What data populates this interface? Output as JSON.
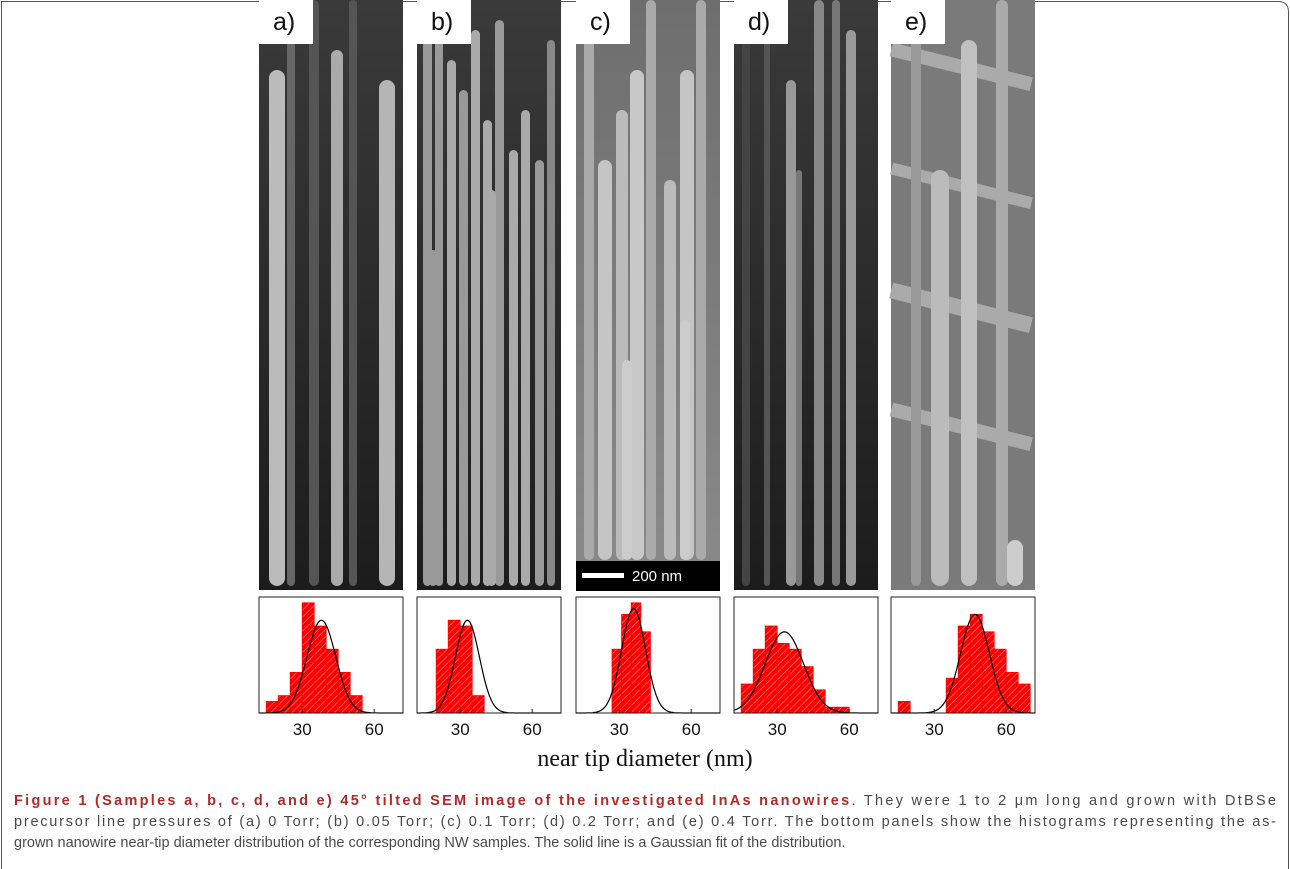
{
  "panels": [
    {
      "label": "a)"
    },
    {
      "label": "b)"
    },
    {
      "label": "c)"
    },
    {
      "label": "d)"
    },
    {
      "label": "e)"
    }
  ],
  "scale_bar": "200 nm",
  "x_label": "near tip diameter (nm)",
  "chart_data": [
    {
      "type": "histogram",
      "bins": [
        15,
        20,
        25,
        30,
        35,
        40,
        45,
        50,
        55
      ],
      "values": [
        2,
        3,
        7,
        19,
        15,
        11,
        7,
        3
      ],
      "color": "#ff0000",
      "xlim": [
        12,
        72
      ],
      "xticks": [
        30,
        60
      ],
      "ylim": [
        0,
        20
      ],
      "fit": {
        "mean": 38,
        "sd": 6,
        "peak": 16
      }
    },
    {
      "type": "histogram",
      "bins": [
        20,
        25,
        30,
        35,
        40
      ],
      "values": [
        11,
        16,
        15,
        3
      ],
      "color": "#ff0000",
      "xlim": [
        12,
        72
      ],
      "xticks": [
        30,
        60
      ],
      "ylim": [
        0,
        20
      ],
      "fit": {
        "mean": 33,
        "sd": 5,
        "peak": 16
      }
    },
    {
      "type": "histogram",
      "bins": [
        27,
        31,
        35,
        39,
        43
      ],
      "values": [
        11,
        17,
        19,
        14
      ],
      "color": "#ff0000",
      "xlim": [
        12,
        72
      ],
      "xticks": [
        30,
        60
      ],
      "ylim": [
        0,
        20
      ],
      "fit": {
        "mean": 36,
        "sd": 5,
        "peak": 18
      }
    },
    {
      "type": "histogram",
      "bins": [
        15,
        20,
        25,
        30,
        35,
        40,
        45,
        50,
        55,
        60
      ],
      "values": [
        5,
        11,
        15,
        12,
        11,
        8,
        4,
        1,
        1
      ],
      "color": "#ff0000",
      "xlim": [
        12,
        72
      ],
      "xticks": [
        30,
        60
      ],
      "ylim": [
        0,
        20
      ],
      "fit": {
        "mean": 33,
        "sd": 8,
        "peak": 14
      }
    },
    {
      "type": "histogram",
      "bins": [
        15,
        20,
        25,
        30,
        35,
        40,
        45,
        50,
        55,
        60,
        65,
        70
      ],
      "values": [
        2,
        0,
        0,
        0,
        6,
        15,
        17,
        14,
        11,
        7,
        5
      ],
      "color": "#ff0000",
      "xlim": [
        12,
        72
      ],
      "xticks": [
        30,
        60
      ],
      "ylim": [
        0,
        20
      ],
      "fit": {
        "mean": 47,
        "sd": 6,
        "peak": 17
      }
    }
  ],
  "caption": {
    "title": "Figure 1 (Samples a, b, c, d, and e) 45° tilted SEM image of the investigated InAs nanowires",
    "lines": [
      ". They were 1 to 2 μm long and grown with DtBSe",
      "precursor line pressures of (a) 0 Torr; (b) 0.05 Torr; (c) 0.1 Torr; (d) 0.2 Torr; and (e) 0.4 Torr. The bottom panels show the histograms representing the as-",
      "grown nanowire near-tip diameter distribution of the corresponding NW samples. The solid line is a Gaussian fit of the distribution."
    ]
  }
}
